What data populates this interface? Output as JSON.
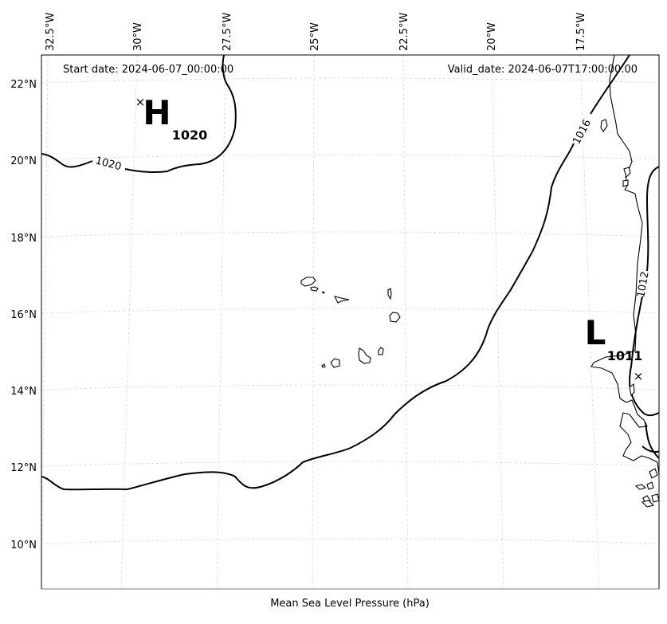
{
  "header": {
    "start_date": "Start date: 2024-06-07_00:00:00",
    "valid_date": "Valid_date: 2024-06-07T17:00:00.00"
  },
  "footer": {
    "caption": "Mean Sea Level Pressure (hPa)"
  },
  "axes": {
    "longitude_labels": [
      "32.5°W",
      "30°W",
      "27.5°W",
      "25°W",
      "22.5°W",
      "20°W",
      "17.5°W"
    ],
    "latitude_labels": [
      "22°N",
      "20°N",
      "18°N",
      "16°N",
      "14°N",
      "12°N",
      "10°N"
    ]
  },
  "isobar_labels": [
    "1020",
    "1016",
    "1012"
  ],
  "pressure_systems": {
    "high": {
      "letter": "H",
      "value": "1020",
      "marker": "×"
    },
    "low": {
      "letter": "L",
      "value": "1011",
      "marker": "×"
    }
  }
}
